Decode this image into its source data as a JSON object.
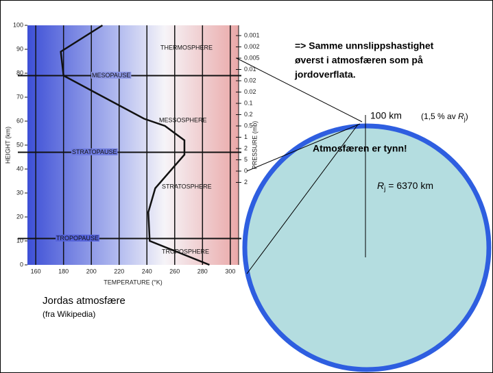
{
  "chart_data": {
    "type": "line",
    "x_label": "TEMPERATURE (°K)",
    "y_label": "HEIGHT (km)",
    "y2_label": "PRESSURE (mb)",
    "xlim": [
      154,
      306
    ],
    "ylim": [
      0,
      100
    ],
    "xticks": [
      160,
      180,
      200,
      220,
      240,
      260,
      280,
      300
    ],
    "yticks": [
      0,
      10,
      20,
      30,
      40,
      50,
      60,
      70,
      80,
      90,
      100
    ],
    "pressure_labels": [
      "0.001",
      "0.002",
      "0.005",
      "0.01",
      "0.02",
      "0.02",
      "0.1",
      "0.2",
      "0.5",
      "1",
      "2",
      "5",
      "0",
      "2"
    ],
    "series": [
      {
        "color": "#111111",
        "x": [
          285,
          242,
          241,
          246,
          267,
          267,
          253,
          238,
          180,
          178,
          208
        ],
        "values": [
          0,
          10,
          22,
          32,
          46,
          52,
          58,
          61,
          79,
          89,
          100
        ]
      }
    ],
    "levels": [
      {
        "label": "MESOPAUSE",
        "height": 79
      },
      {
        "label": "STRATOPAUSE",
        "height": 47
      },
      {
        "label": "TROPOPAUSE",
        "height": 11
      }
    ],
    "layers": [
      "THERMOSPHERE",
      "MESSOSPHERE",
      "STRATOSPHERE",
      "TROPOSPHERE"
    ]
  },
  "caption": {
    "title": "Jordas atmosfære",
    "source": "(fra Wikipedia)"
  },
  "note": {
    "lines": [
      "=> Samme unnslippshastighet",
      "øverst i atmosfæren som på",
      "jordoverflata."
    ]
  },
  "earth": {
    "height_label": "100 km",
    "fraction": [
      "(1,5 % av ",
      "R",
      "j",
      ")"
    ],
    "thin": "Atmosfæren er tynn!",
    "radius": [
      "R",
      "j",
      " = 6370 km"
    ]
  }
}
